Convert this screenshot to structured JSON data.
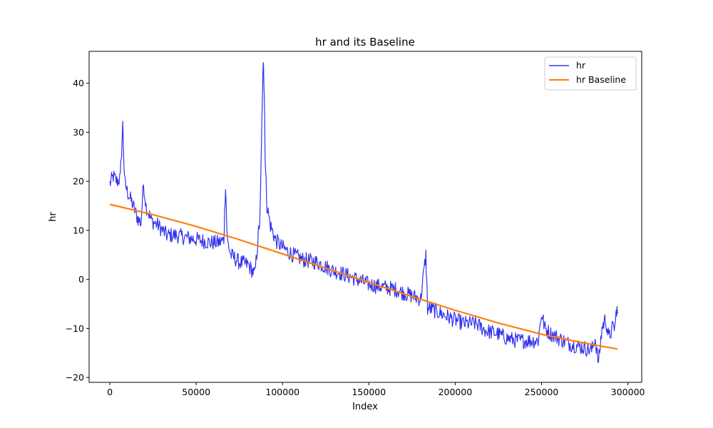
{
  "chart_data": {
    "type": "line",
    "title": "hr and its Baseline",
    "xlabel": "Index",
    "ylabel": "hr",
    "xlim": [
      -12000,
      308000
    ],
    "ylim": [
      -21,
      46.5
    ],
    "xticks": [
      0,
      50000,
      100000,
      150000,
      200000,
      250000,
      300000
    ],
    "xtick_labels": [
      "0",
      "50000",
      "100000",
      "150000",
      "200000",
      "250000",
      "300000"
    ],
    "yticks": [
      -20,
      -10,
      0,
      10,
      20,
      30,
      40
    ],
    "ytick_labels": [
      "−20",
      "−10",
      "0",
      "10",
      "20",
      "30",
      "40"
    ],
    "grid": false,
    "legend_position": "top-right",
    "series": [
      {
        "name": "hr",
        "color": "#3333ee",
        "x": [
          0,
          2000,
          4000,
          6000,
          7500,
          8500,
          10000,
          13000,
          16000,
          18000,
          19500,
          21000,
          24000,
          28000,
          33000,
          38000,
          45000,
          52000,
          58000,
          63000,
          66000,
          67000,
          68000,
          70000,
          75000,
          80000,
          84000,
          86000,
          87000,
          88500,
          89000,
          89500,
          90000,
          91000,
          93000,
          96000,
          100000,
          106000,
          112000,
          120000,
          128000,
          136000,
          143000,
          150000,
          157000,
          165000,
          172000,
          180000,
          183000,
          184000,
          186000,
          192000,
          198000,
          205000,
          212000,
          218000,
          224000,
          230000,
          236000,
          242000,
          248000,
          250000,
          252000,
          255000,
          260000,
          265000,
          270000,
          275000,
          279000,
          281000,
          283000,
          285000,
          287000,
          289000,
          291000,
          292500,
          293500,
          294000
        ],
        "y": [
          19.5,
          21,
          20,
          20.5,
          31.5,
          20,
          18,
          15.5,
          12.5,
          11.5,
          19.5,
          15,
          12,
          11,
          9,
          9,
          8.5,
          8,
          7.5,
          7.5,
          8,
          19.5,
          8,
          5,
          3.5,
          3,
          1,
          9,
          13,
          40,
          44.5,
          37,
          24,
          15,
          11,
          8,
          6.5,
          5,
          4,
          3.5,
          2,
          1,
          0,
          -1,
          -1.5,
          -2,
          -3,
          -4,
          5,
          -6,
          -6,
          -7,
          -8,
          -9,
          -9,
          -10.5,
          -11,
          -12,
          -12.5,
          -12.5,
          -12.5,
          -7,
          -10,
          -11,
          -12,
          -13,
          -13.5,
          -14,
          -14.5,
          -12,
          -17,
          -10,
          -8,
          -12,
          -10,
          -9.5,
          -6,
          -7
        ]
      },
      {
        "name": "hr Baseline",
        "color": "#ff7f0e",
        "x": [
          0,
          25000,
          50000,
          75000,
          100000,
          125000,
          150000,
          175000,
          200000,
          225000,
          250000,
          275000,
          294000
        ],
        "y": [
          15.3,
          13.2,
          10.8,
          8.1,
          5.2,
          2.3,
          -0.6,
          -3.5,
          -6.3,
          -8.9,
          -11.2,
          -13.0,
          -14.2
        ]
      }
    ]
  }
}
